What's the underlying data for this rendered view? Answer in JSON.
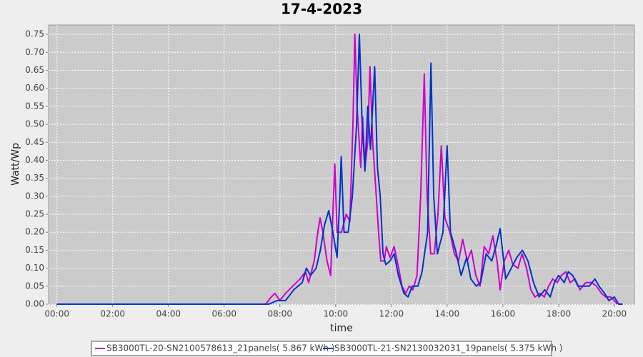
{
  "chart_data": {
    "type": "line",
    "title": "17-4-2023",
    "x_label": "time",
    "y_label": "Watt/Wp",
    "xlim": [
      -0.3,
      20.72
    ],
    "ylim": [
      0,
      0.776
    ],
    "xticks": [
      {
        "value": 0,
        "label": "00:00"
      },
      {
        "value": 2,
        "label": "02:00"
      },
      {
        "value": 4,
        "label": "04:00"
      },
      {
        "value": 6,
        "label": "06:00"
      },
      {
        "value": 8,
        "label": "08:00"
      },
      {
        "value": 10,
        "label": "10:00"
      },
      {
        "value": 12,
        "label": "12:00"
      },
      {
        "value": 14,
        "label": "14:00"
      },
      {
        "value": 16,
        "label": "16:00"
      },
      {
        "value": 18,
        "label": "18:00"
      },
      {
        "value": 20,
        "label": "20:00"
      }
    ],
    "yticks": [
      {
        "value": 0,
        "label": "0.00"
      },
      0.05,
      {
        "value": 0.1,
        "label": "0.10"
      },
      0.15,
      {
        "value": 0.2,
        "label": "0.20"
      },
      0.25,
      {
        "value": 0.3,
        "label": "0.30"
      },
      0.35,
      {
        "value": 0.4,
        "label": "0.40"
      },
      0.45,
      {
        "value": 0.5,
        "label": "0.50"
      },
      0.55,
      {
        "value": 0.6,
        "label": "0.60"
      },
      0.65,
      {
        "value": 0.7,
        "label": "0.70"
      },
      0.75
    ],
    "grid": true,
    "legend": "bottom",
    "series": [
      {
        "name": "SB3000TL-20-SN2100578613_21panels( 5.867 kWh )",
        "color": "#cc00cc",
        "x": [
          0,
          7.49,
          7.69,
          7.82,
          8.0,
          8.2,
          8.46,
          8.72,
          8.92,
          9.03,
          9.23,
          9.36,
          9.44,
          9.54,
          9.69,
          9.82,
          9.9,
          9.97,
          10.05,
          10.21,
          10.38,
          10.51,
          10.62,
          10.69,
          10.77,
          10.9,
          10.97,
          11.05,
          11.15,
          11.23,
          11.33,
          11.44,
          11.54,
          11.62,
          11.74,
          11.82,
          11.95,
          12.1,
          12.26,
          12.38,
          12.51,
          12.64,
          12.77,
          12.92,
          13.05,
          13.18,
          13.28,
          13.41,
          13.54,
          13.67,
          13.79,
          13.92,
          14.1,
          14.26,
          14.41,
          14.56,
          14.72,
          14.87,
          15.03,
          15.18,
          15.33,
          15.49,
          15.64,
          15.79,
          15.9,
          16.05,
          16.21,
          16.36,
          16.54,
          16.69,
          16.85,
          17.0,
          17.15,
          17.33,
          17.49,
          17.64,
          17.79,
          17.95,
          18.1,
          18.26,
          18.41,
          18.59,
          18.77,
          18.97,
          19.18,
          19.36,
          19.54,
          19.69,
          19.87,
          20.0,
          20.1
        ],
        "values": [
          0,
          0,
          0.02,
          0.03,
          0.01,
          0.03,
          0.05,
          0.07,
          0.09,
          0.06,
          0.12,
          0.2,
          0.24,
          0.2,
          0.12,
          0.08,
          0.25,
          0.39,
          0.2,
          0.2,
          0.25,
          0.23,
          0.5,
          0.75,
          0.55,
          0.38,
          0.52,
          0.38,
          0.45,
          0.66,
          0.45,
          0.32,
          0.2,
          0.12,
          0.12,
          0.16,
          0.13,
          0.16,
          0.1,
          0.05,
          0.03,
          0.05,
          0.04,
          0.08,
          0.3,
          0.64,
          0.3,
          0.14,
          0.14,
          0.25,
          0.44,
          0.24,
          0.2,
          0.14,
          0.12,
          0.18,
          0.12,
          0.15,
          0.08,
          0.05,
          0.16,
          0.14,
          0.19,
          0.12,
          0.04,
          0.12,
          0.15,
          0.11,
          0.1,
          0.14,
          0.1,
          0.04,
          0.02,
          0.03,
          0.02,
          0.05,
          0.07,
          0.06,
          0.08,
          0.09,
          0.06,
          0.07,
          0.04,
          0.06,
          0.06,
          0.05,
          0.03,
          0.02,
          0.02,
          0.01,
          0
        ]
      },
      {
        "name": "SB3000TL-21-SN2130032031_19panels( 5.375 kWh )",
        "color": "#0033cc",
        "x": [
          0,
          7.6,
          7.9,
          8.2,
          8.5,
          8.8,
          8.95,
          9.1,
          9.3,
          9.45,
          9.6,
          9.75,
          9.9,
          10.05,
          10.15,
          10.2,
          10.3,
          10.45,
          10.6,
          10.75,
          10.85,
          10.95,
          11.05,
          11.15,
          11.25,
          11.4,
          11.5,
          11.6,
          11.7,
          11.8,
          11.95,
          12.1,
          12.25,
          12.45,
          12.6,
          12.75,
          12.95,
          13.1,
          13.3,
          13.42,
          13.52,
          13.65,
          13.85,
          14.0,
          14.12,
          14.3,
          14.5,
          14.7,
          14.85,
          15.05,
          15.2,
          15.4,
          15.6,
          15.75,
          15.9,
          16.0,
          16.1,
          16.3,
          16.5,
          16.7,
          16.9,
          17.1,
          17.3,
          17.5,
          17.7,
          17.85,
          18.0,
          18.2,
          18.35,
          18.5,
          18.7,
          18.9,
          19.1,
          19.3,
          19.45,
          19.65,
          19.8,
          20.0,
          20.15,
          20.3
        ],
        "values": [
          0,
          0,
          0.01,
          0.01,
          0.04,
          0.06,
          0.1,
          0.08,
          0.1,
          0.15,
          0.22,
          0.26,
          0.2,
          0.13,
          0.3,
          0.41,
          0.2,
          0.2,
          0.3,
          0.5,
          0.75,
          0.5,
          0.37,
          0.55,
          0.43,
          0.66,
          0.38,
          0.3,
          0.14,
          0.11,
          0.12,
          0.14,
          0.08,
          0.03,
          0.02,
          0.05,
          0.05,
          0.09,
          0.2,
          0.67,
          0.3,
          0.14,
          0.2,
          0.44,
          0.2,
          0.15,
          0.08,
          0.13,
          0.07,
          0.05,
          0.06,
          0.14,
          0.12,
          0.16,
          0.21,
          0.14,
          0.07,
          0.1,
          0.13,
          0.15,
          0.12,
          0.06,
          0.02,
          0.04,
          0.02,
          0.06,
          0.08,
          0.06,
          0.09,
          0.08,
          0.05,
          0.05,
          0.05,
          0.07,
          0.05,
          0.03,
          0.01,
          0.02,
          0,
          0
        ]
      }
    ]
  }
}
